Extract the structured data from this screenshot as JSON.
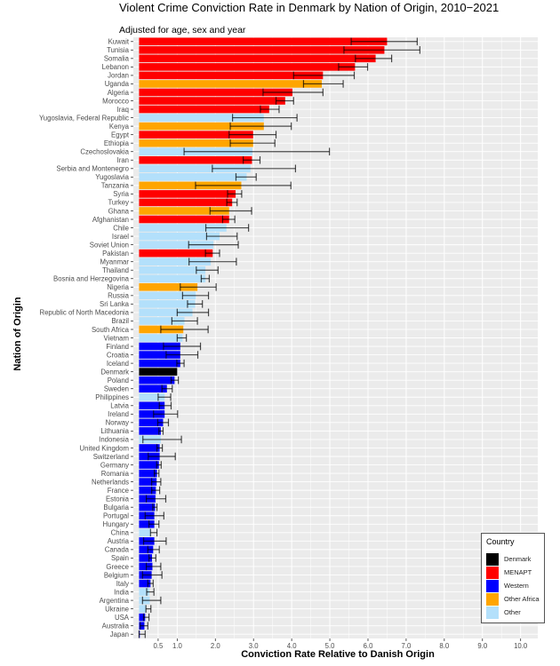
{
  "chart_data": {
    "type": "bar",
    "orientation": "horizontal",
    "title": "Violent Crime Conviction Rate in Denmark by Nation of Origin, 2010−2021",
    "subtitle": "Adjusted for age, sex and year",
    "xlabel": "Conviction Rate Relative to Danish Origin",
    "ylabel": "Nation of Origin",
    "xlim": [
      -0.15,
      10.45
    ],
    "x_ticks": [
      "0.5",
      "1.0",
      "2.0",
      "3.0",
      "4.0",
      "5.0",
      "6.0",
      "7.0",
      "8.0",
      "9.0",
      "10.0"
    ],
    "grid": true,
    "error_bars": true,
    "legend": {
      "title": "Country",
      "placement": "bottom-right",
      "entries": [
        {
          "name": "Denmark",
          "color": "#000000"
        },
        {
          "name": "MENAPT",
          "color": "#ff0000"
        },
        {
          "name": "Western",
          "color": "#0000ff"
        },
        {
          "name": "Other Africa",
          "color": "#ffa500"
        },
        {
          "name": "Other",
          "color": "#b3e0fb"
        }
      ]
    },
    "data": [
      {
        "country": "Kuwait",
        "group": "MENAPT",
        "value": 6.5,
        "ci": [
          5.56,
          7.29
        ]
      },
      {
        "country": "Tunisia",
        "group": "MENAPT",
        "value": 6.43,
        "ci": [
          5.37,
          7.36
        ]
      },
      {
        "country": "Somalia",
        "group": "MENAPT",
        "value": 6.2,
        "ci": [
          5.67,
          6.62
        ]
      },
      {
        "country": "Lebanon",
        "group": "MENAPT",
        "value": 5.66,
        "ci": [
          5.23,
          5.99
        ]
      },
      {
        "country": "Jordan",
        "group": "MENAPT",
        "value": 4.82,
        "ci": [
          4.05,
          5.64
        ]
      },
      {
        "country": "Uganda",
        "group": "Other Africa",
        "value": 4.79,
        "ci": [
          4.31,
          5.35
        ]
      },
      {
        "country": "Algeria",
        "group": "MENAPT",
        "value": 4.02,
        "ci": [
          3.25,
          4.82
        ]
      },
      {
        "country": "Morocco",
        "group": "MENAPT",
        "value": 3.83,
        "ci": [
          3.59,
          4.05
        ]
      },
      {
        "country": "Iraq",
        "group": "MENAPT",
        "value": 3.41,
        "ci": [
          3.18,
          3.67
        ]
      },
      {
        "country": "Yugoslavia, Federal Republic",
        "group": "Other",
        "value": 3.27,
        "ci": [
          2.45,
          4.14
        ]
      },
      {
        "country": "Kenya",
        "group": "Other Africa",
        "value": 3.27,
        "ci": [
          2.39,
          3.99
        ]
      },
      {
        "country": "Egypt",
        "group": "MENAPT",
        "value": 2.99,
        "ci": [
          2.36,
          3.59
        ]
      },
      {
        "country": "Ethiopia",
        "group": "Other Africa",
        "value": 2.99,
        "ci": [
          2.39,
          3.56
        ]
      },
      {
        "country": "Czechoslovakia",
        "group": "Other",
        "value": 2.97,
        "ci": [
          1.18,
          4.99
        ]
      },
      {
        "country": "Iran",
        "group": "MENAPT",
        "value": 2.96,
        "ci": [
          2.73,
          3.17
        ]
      },
      {
        "country": "Serbia and Montenegro",
        "group": "Other",
        "value": 2.92,
        "ci": [
          1.92,
          4.1
        ]
      },
      {
        "country": "Yugoslavia",
        "group": "Other",
        "value": 2.82,
        "ci": [
          2.54,
          3.07
        ]
      },
      {
        "country": "Tanzania",
        "group": "Other Africa",
        "value": 2.68,
        "ci": [
          1.48,
          3.98
        ]
      },
      {
        "country": "Syria",
        "group": "MENAPT",
        "value": 2.53,
        "ci": [
          2.32,
          2.69
        ]
      },
      {
        "country": "Turkey",
        "group": "MENAPT",
        "value": 2.44,
        "ci": [
          2.3,
          2.57
        ]
      },
      {
        "country": "Ghana",
        "group": "Other Africa",
        "value": 2.36,
        "ci": [
          1.86,
          2.95
        ]
      },
      {
        "country": "Afghanistan",
        "group": "MENAPT",
        "value": 2.36,
        "ci": [
          2.19,
          2.51
        ]
      },
      {
        "country": "Chile",
        "group": "Other",
        "value": 2.29,
        "ci": [
          1.75,
          2.87
        ]
      },
      {
        "country": "Israel",
        "group": "Other",
        "value": 2.11,
        "ci": [
          1.77,
          2.57
        ]
      },
      {
        "country": "Soviet Union",
        "group": "Other",
        "value": 1.95,
        "ci": [
          1.3,
          2.6
        ]
      },
      {
        "country": "Pakistan",
        "group": "MENAPT",
        "value": 1.93,
        "ci": [
          1.74,
          2.11
        ]
      },
      {
        "country": "Myanmar",
        "group": "Other",
        "value": 1.88,
        "ci": [
          1.31,
          2.55
        ]
      },
      {
        "country": "Thailand",
        "group": "Other",
        "value": 1.74,
        "ci": [
          1.5,
          2.07
        ]
      },
      {
        "country": "Bosnia and Herzegovina",
        "group": "Other",
        "value": 1.74,
        "ci": [
          1.63,
          1.84
        ]
      },
      {
        "country": "Nigeria",
        "group": "Other Africa",
        "value": 1.53,
        "ci": [
          1.08,
          2.02
        ]
      },
      {
        "country": "Russia",
        "group": "Other",
        "value": 1.49,
        "ci": [
          1.14,
          1.82
        ]
      },
      {
        "country": "Sri Lanka",
        "group": "Other",
        "value": 1.47,
        "ci": [
          1.27,
          1.66
        ]
      },
      {
        "country": "Republic of North Macedonia",
        "group": "Other",
        "value": 1.4,
        "ci": [
          1.0,
          1.82
        ]
      },
      {
        "country": "Brazil",
        "group": "Other",
        "value": 1.19,
        "ci": [
          0.86,
          1.53
        ]
      },
      {
        "country": "South Africa",
        "group": "Other Africa",
        "value": 1.16,
        "ci": [
          0.57,
          1.81
        ]
      },
      {
        "country": "Vietnam",
        "group": "Other",
        "value": 1.14,
        "ci": [
          1.0,
          1.24
        ]
      },
      {
        "country": "Finland",
        "group": "Western",
        "value": 1.08,
        "ci": [
          0.64,
          1.61
        ]
      },
      {
        "country": "Croatia",
        "group": "Western",
        "value": 1.08,
        "ci": [
          0.71,
          1.54
        ]
      },
      {
        "country": "Iceland",
        "group": "Western",
        "value": 1.08,
        "ci": [
          0.99,
          1.18
        ]
      },
      {
        "country": "Denmark",
        "group": "Denmark",
        "value": 1.0,
        "ci": null
      },
      {
        "country": "Poland",
        "group": "Western",
        "value": 0.93,
        "ci": [
          0.84,
          1.03
        ]
      },
      {
        "country": "Sweden",
        "group": "Western",
        "value": 0.73,
        "ci": [
          0.6,
          0.87
        ]
      },
      {
        "country": "Philippines",
        "group": "Other",
        "value": 0.67,
        "ci": [
          0.5,
          0.83
        ]
      },
      {
        "country": "Latvia",
        "group": "Western",
        "value": 0.67,
        "ci": [
          0.53,
          0.84
        ]
      },
      {
        "country": "Ireland",
        "group": "Western",
        "value": 0.67,
        "ci": [
          0.38,
          1.01
        ]
      },
      {
        "country": "Norway",
        "group": "Western",
        "value": 0.63,
        "ci": [
          0.49,
          0.77
        ]
      },
      {
        "country": "Lithuania",
        "group": "Western",
        "value": 0.57,
        "ci": [
          0.52,
          0.63
        ]
      },
      {
        "country": "Indonesia",
        "group": "Other",
        "value": 0.57,
        "ci": [
          0.1,
          1.11
        ]
      },
      {
        "country": "United Kingdom",
        "group": "Western",
        "value": 0.54,
        "ci": [
          0.47,
          0.61
        ]
      },
      {
        "country": "Switzerland",
        "group": "Western",
        "value": 0.54,
        "ci": [
          0.24,
          0.95
        ]
      },
      {
        "country": "Germany",
        "group": "Western",
        "value": 0.52,
        "ci": [
          0.46,
          0.58
        ]
      },
      {
        "country": "Romania",
        "group": "Western",
        "value": 0.47,
        "ci": [
          0.4,
          0.52
        ]
      },
      {
        "country": "Netherlands",
        "group": "Western",
        "value": 0.46,
        "ci": [
          0.33,
          0.57
        ]
      },
      {
        "country": "France",
        "group": "Western",
        "value": 0.44,
        "ci": [
          0.33,
          0.54
        ]
      },
      {
        "country": "Estonia",
        "group": "Western",
        "value": 0.43,
        "ci": [
          0.19,
          0.7
        ]
      },
      {
        "country": "Bulgaria",
        "group": "Western",
        "value": 0.42,
        "ci": [
          0.36,
          0.47
        ]
      },
      {
        "country": "Portugal",
        "group": "Western",
        "value": 0.4,
        "ci": [
          0.16,
          0.65
        ]
      },
      {
        "country": "Hungary",
        "group": "Western",
        "value": 0.4,
        "ci": [
          0.26,
          0.52
        ]
      },
      {
        "country": "China",
        "group": "Other",
        "value": 0.31,
        "ci": [
          0.3,
          0.47
        ]
      },
      {
        "country": "Austria",
        "group": "Western",
        "value": 0.4,
        "ci": [
          0.12,
          0.71
        ]
      },
      {
        "country": "Canada",
        "group": "Western",
        "value": 0.37,
        "ci": [
          0.23,
          0.53
        ]
      },
      {
        "country": "Spain",
        "group": "Western",
        "value": 0.34,
        "ci": [
          0.26,
          0.44
        ]
      },
      {
        "country": "Greece",
        "group": "Western",
        "value": 0.35,
        "ci": [
          0.19,
          0.57
        ]
      },
      {
        "country": "Belgium",
        "group": "Western",
        "value": 0.33,
        "ci": [
          0.09,
          0.6
        ]
      },
      {
        "country": "Italy",
        "group": "Western",
        "value": 0.3,
        "ci": [
          0.23,
          0.37
        ]
      },
      {
        "country": "India",
        "group": "Other",
        "value": 0.27,
        "ci": [
          0.2,
          0.39
        ]
      },
      {
        "country": "Argentina",
        "group": "Other",
        "value": 0.28,
        "ci": [
          0.09,
          0.57
        ]
      },
      {
        "country": "Ukraine",
        "group": "Other",
        "value": 0.19,
        "ci": [
          0.18,
          0.31
        ]
      },
      {
        "country": "USA",
        "group": "Western",
        "value": 0.16,
        "ci": [
          0.12,
          0.26
        ]
      },
      {
        "country": "Australia",
        "group": "Western",
        "value": 0.14,
        "ci": [
          0.03,
          0.23
        ]
      },
      {
        "country": "Japan",
        "group": "Western",
        "value": 0.02,
        "ci": [
          0.0,
          0.16
        ]
      }
    ]
  }
}
